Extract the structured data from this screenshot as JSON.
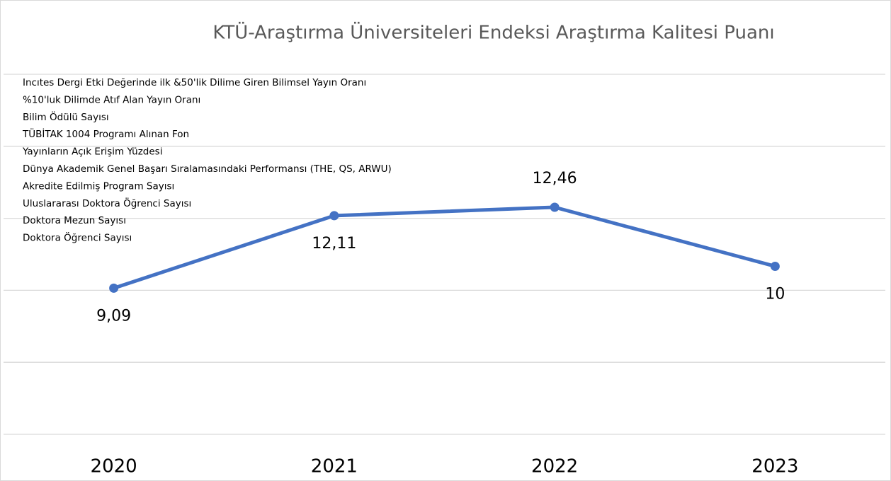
{
  "chart_data": {
    "type": "line",
    "title": "KTÜ-Araştırma Üniversiteleri Endeksi Araştırma Kalitesi Puanı",
    "legend": [
      "Incıtes Dergi Etki Değerinde ilk &50'lik Dilime Giren Bilimsel Yayın Oranı",
      "%10'luk Dilimde Atıf Alan Yayın Oranı",
      "Bilim Ödülü Sayısı",
      "TÜBİTAK 1004 Programı Alınan Fon",
      "Yayınların Açık Erişim Yüzdesi",
      "Dünya Akademik Genel Başarı Sıralamasındaki Performansı (THE, QS, ARWU)",
      "Akredite Edilmiş Program Sayısı",
      "Uluslararası Doktora Öğrenci Sayısı",
      "Doktora Mezun Sayısı",
      "Doktora Öğrenci Sayısı"
    ],
    "categories": [
      "2020",
      "2021",
      "2022",
      "2023"
    ],
    "values": [
      9.09,
      12.11,
      12.46,
      10
    ],
    "value_labels": [
      "9,09",
      "12,11",
      "12,46",
      "10"
    ],
    "color": "#4472c4",
    "ylim": [
      3,
      18
    ],
    "yticks": [
      3,
      6,
      9,
      12,
      15,
      18
    ],
    "grid": true
  }
}
